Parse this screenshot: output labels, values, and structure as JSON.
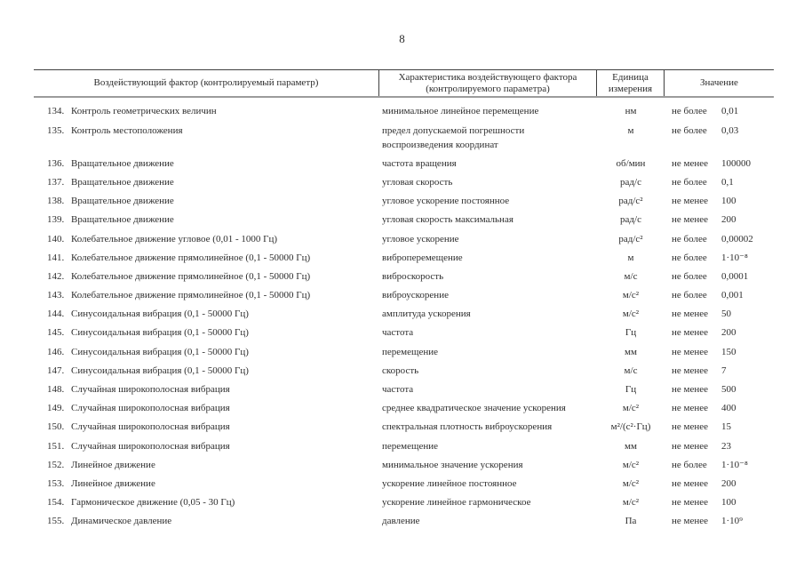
{
  "page_number": "8",
  "table": {
    "headers": [
      "Воздействующий фактор (контролируемый параметр)",
      "Характеристика воздействующего фактора (контролируемого параметра)",
      "Единица измерения",
      "Значение"
    ],
    "rows": [
      {
        "num": "134.",
        "factor": "Контроль геометрических величин",
        "characteristic": "минимальное линейное перемещение",
        "unit": "нм",
        "qualifier": "не более",
        "value": "0,01"
      },
      {
        "num": "135.",
        "factor": "Контроль местоположения",
        "characteristic": "предел допускаемой погрешности воспроизведения координат",
        "unit": "м",
        "qualifier": "не более",
        "value": "0,03"
      },
      {
        "num": "136.",
        "factor": "Вращательное движение",
        "characteristic": "частота вращения",
        "unit": "об/мин",
        "qualifier": "не менее",
        "value": "100000"
      },
      {
        "num": "137.",
        "factor": "Вращательное движение",
        "characteristic": "угловая скорость",
        "unit": "рад/с",
        "qualifier": "не более",
        "value": "0,1"
      },
      {
        "num": "138.",
        "factor": "Вращательное движение",
        "characteristic": "угловое ускорение постоянное",
        "unit": "рад/с²",
        "qualifier": "не менее",
        "value": "100"
      },
      {
        "num": "139.",
        "factor": "Вращательное движение",
        "characteristic": "угловая скорость максимальная",
        "unit": "рад/с",
        "qualifier": "не менее",
        "value": "200"
      },
      {
        "num": "140.",
        "factor": "Колебательное движение угловое (0,01 - 1000 Гц)",
        "characteristic": "угловое ускорение",
        "unit": "рад/с²",
        "qualifier": "не более",
        "value": "0,00002"
      },
      {
        "num": "141.",
        "factor": "Колебательное движение прямолинейное (0,1 - 50000 Гц)",
        "characteristic": "виброперемещение",
        "unit": "м",
        "qualifier": "не более",
        "value": "1·10⁻⁸"
      },
      {
        "num": "142.",
        "factor": "Колебательное движение прямолинейное (0,1 - 50000 Гц)",
        "characteristic": "виброскорость",
        "unit": "м/с",
        "qualifier": "не более",
        "value": "0,0001"
      },
      {
        "num": "143.",
        "factor": "Колебательное движение прямолинейное (0,1 - 50000 Гц)",
        "characteristic": "виброускорение",
        "unit": "м/с²",
        "qualifier": "не более",
        "value": "0,001"
      },
      {
        "num": "144.",
        "factor": "Синусоидальная вибрация (0,1 - 50000 Гц)",
        "characteristic": "амплитуда ускорения",
        "unit": "м/с²",
        "qualifier": "не менее",
        "value": "50"
      },
      {
        "num": "145.",
        "factor": "Синусоидальная вибрация (0,1 - 50000 Гц)",
        "characteristic": "частота",
        "unit": "Гц",
        "qualifier": "не менее",
        "value": "200"
      },
      {
        "num": "146.",
        "factor": "Синусоидальная вибрация (0,1 - 50000 Гц)",
        "characteristic": "перемещение",
        "unit": "мм",
        "qualifier": "не менее",
        "value": "150"
      },
      {
        "num": "147.",
        "factor": "Синусоидальная вибрация (0,1 - 50000 Гц)",
        "characteristic": "скорость",
        "unit": "м/с",
        "qualifier": "не менее",
        "value": "7"
      },
      {
        "num": "148.",
        "factor": "Случайная широкополосная вибрация",
        "characteristic": "частота",
        "unit": "Гц",
        "qualifier": "не менее",
        "value": "500"
      },
      {
        "num": "149.",
        "factor": "Случайная широкополосная вибрация",
        "characteristic": "среднее квадратическое значение ускорения",
        "unit": "м/с²",
        "qualifier": "не менее",
        "value": "400"
      },
      {
        "num": "150.",
        "factor": "Случайная широкополосная вибрация",
        "characteristic": "спектральная плотность виброускорения",
        "unit": "м²/(с²·Гц)",
        "qualifier": "не менее",
        "value": "15"
      },
      {
        "num": "151.",
        "factor": "Случайная широкополосная вибрация",
        "characteristic": "перемещение",
        "unit": "мм",
        "qualifier": "не менее",
        "value": "23"
      },
      {
        "num": "152.",
        "factor": "Линейное движение",
        "characteristic": "минимальное значение ускорения",
        "unit": "м/с²",
        "qualifier": "не более",
        "value": "1·10⁻⁸"
      },
      {
        "num": "153.",
        "factor": "Линейное движение",
        "characteristic": "ускорение линейное постоянное",
        "unit": "м/с²",
        "qualifier": "не менее",
        "value": "200"
      },
      {
        "num": "154.",
        "factor": "Гармоническое движение (0,05 - 30 Гц)",
        "characteristic": "ускорение линейное гармоническое",
        "unit": "м/с²",
        "qualifier": "не менее",
        "value": "100"
      },
      {
        "num": "155.",
        "factor": "Динамическое давление",
        "characteristic": "давление",
        "unit": "Па",
        "qualifier": "не менее",
        "value": "1·10⁹"
      }
    ]
  }
}
